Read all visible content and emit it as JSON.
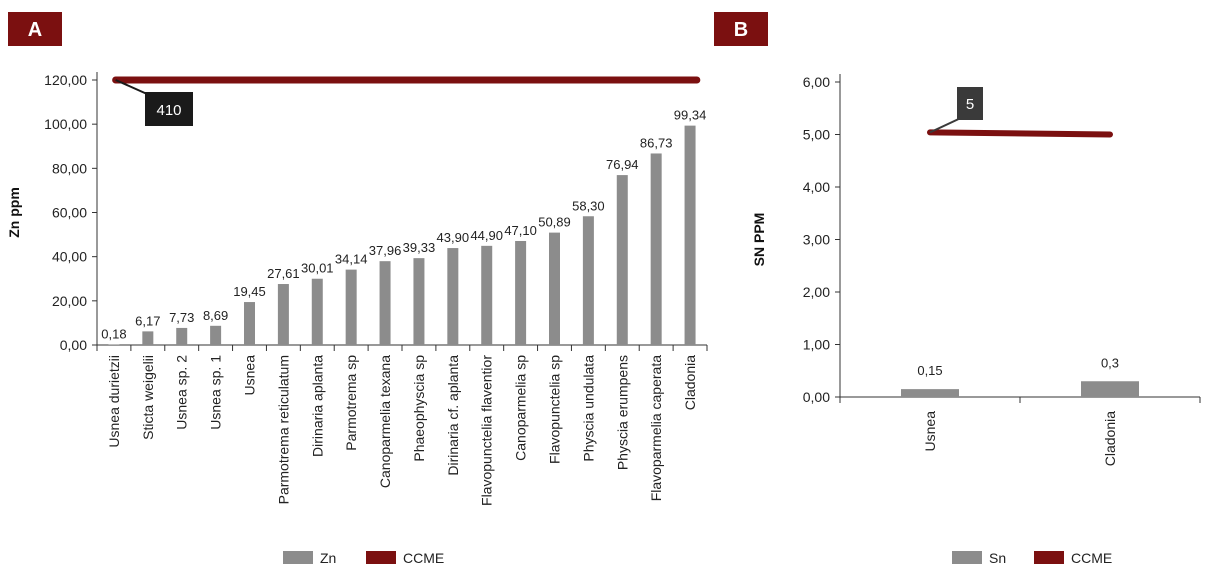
{
  "colors": {
    "bar": "#8c8c8c",
    "ccme": "#7b1010",
    "panel_badge": "#7b1010",
    "callout": "#1a1a1a",
    "callout_b": "#3a3a3a"
  },
  "chart_data": [
    {
      "type": "bar",
      "panel": "A",
      "ylabel": "Zn ppm",
      "ylim": [
        0,
        120
      ],
      "yticks": [
        "0,00",
        "20,00",
        "40,00",
        "60,00",
        "80,00",
        "100,00",
        "120,00"
      ],
      "categories": [
        "Usnea durietzii",
        "Sticta weigelii",
        "Usnea sp. 2",
        "Usnea sp. 1",
        "Usnea",
        "Parmotrema reticulatum",
        "Dirinaria aplanta",
        "Parmotrema sp",
        "Canoparmelia texana",
        "Phaeophyscia sp",
        "Dirinaria cf. aplanta",
        "Flavopunctelia flaventior",
        "Canoparmelia sp",
        "Flavopunctelia sp",
        "Physcia undulata",
        "Physcia erumpens",
        "Flavoparmelia caperata",
        "Cladonia"
      ],
      "values": [
        0.18,
        6.17,
        7.73,
        8.69,
        19.45,
        27.61,
        30.01,
        34.14,
        37.96,
        39.33,
        43.9,
        44.9,
        47.1,
        50.89,
        58.3,
        76.94,
        86.73,
        99.34
      ],
      "value_labels": [
        "0,18",
        "6,17",
        "7,73",
        "8,69",
        "19,45",
        "27,61",
        "30,01",
        "34,14",
        "37,96",
        "39,33",
        "43,90",
        "44,90",
        "47,10",
        "50,89",
        "58,30",
        "76,94",
        "86,73",
        "99,34"
      ],
      "series": [
        {
          "name": "Zn",
          "kind": "bar"
        },
        {
          "name": "CCME",
          "kind": "line",
          "plotted_at": 120,
          "label": "410"
        }
      ],
      "legend": [
        "Zn",
        "CCME"
      ],
      "legend_position": "bottom"
    },
    {
      "type": "bar",
      "panel": "B",
      "ylabel": "SN PPM",
      "ylim": [
        0,
        6
      ],
      "yticks": [
        "0,00",
        "1,00",
        "2,00",
        "3,00",
        "4,00",
        "5,00",
        "6,00"
      ],
      "categories": [
        "Usnea",
        "Cladonia"
      ],
      "values": [
        0.15,
        0.3
      ],
      "value_labels": [
        "0,15",
        "0,3"
      ],
      "series": [
        {
          "name": "Sn",
          "kind": "bar"
        },
        {
          "name": "CCME",
          "kind": "line",
          "values": [
            5.04,
            5.0
          ],
          "label": "5"
        }
      ],
      "legend": [
        "Sn",
        "CCME"
      ],
      "legend_position": "bottom"
    }
  ]
}
